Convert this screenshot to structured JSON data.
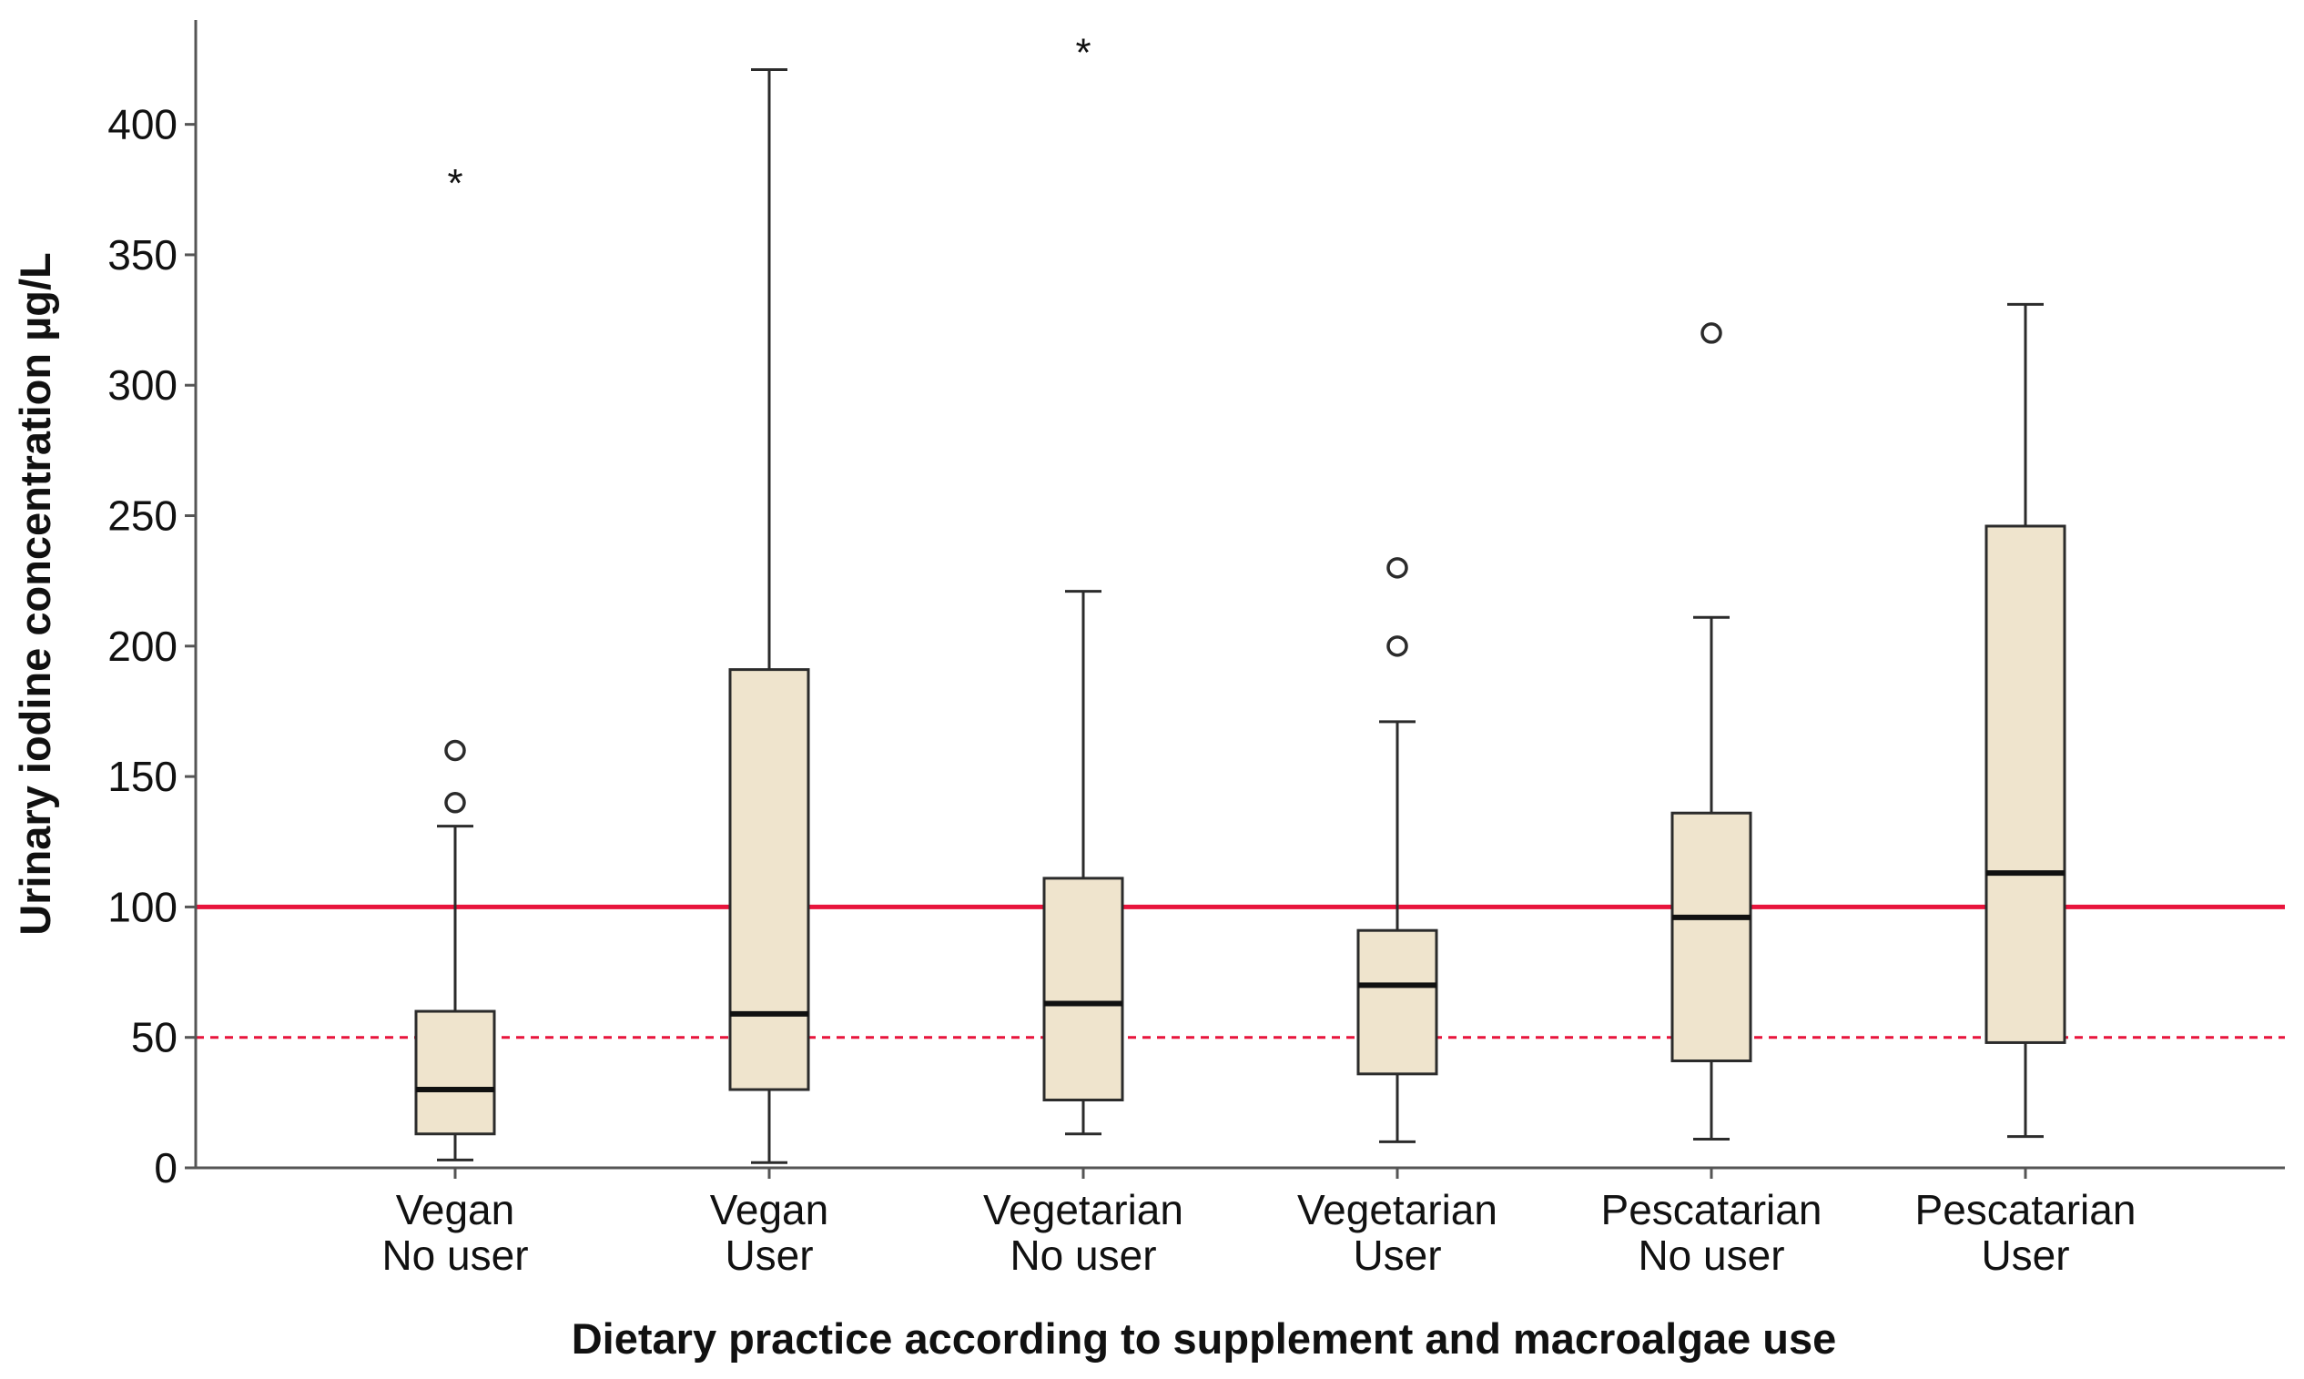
{
  "chart_data": {
    "type": "boxplot",
    "xlabel": "Dietary practice according to supplement and macroalgae use",
    "ylabel": "Urinary iodine concentration µg/L",
    "ylim": [
      0,
      440
    ],
    "yticks": [
      0,
      50,
      100,
      150,
      200,
      250,
      300,
      350,
      400
    ],
    "grid": false,
    "reference_lines": [
      {
        "value": 100,
        "style": "solid",
        "color": "#e8143c"
      },
      {
        "value": 50,
        "style": "dashed",
        "color": "#e8143c"
      }
    ],
    "categories": [
      {
        "label_line1": "Vegan",
        "label_line2": "No user",
        "whisker_low": 3,
        "q1": 13,
        "median": 30,
        "q3": 60,
        "whisker_high": 131,
        "outliers": [
          140,
          160
        ],
        "extremes": [
          380
        ]
      },
      {
        "label_line1": "Vegan",
        "label_line2": "User",
        "whisker_low": 2,
        "q1": 30,
        "median": 59,
        "q3": 191,
        "whisker_high": 421,
        "outliers": [],
        "extremes": []
      },
      {
        "label_line1": "Vegetarian",
        "label_line2": "No user",
        "whisker_low": 13,
        "q1": 26,
        "median": 63,
        "q3": 111,
        "whisker_high": 221,
        "outliers": [],
        "extremes": [
          430
        ]
      },
      {
        "label_line1": "Vegetarian",
        "label_line2": "User",
        "whisker_low": 10,
        "q1": 36,
        "median": 70,
        "q3": 91,
        "whisker_high": 171,
        "outliers": [
          200,
          230
        ],
        "extremes": []
      },
      {
        "label_line1": "Pescatarian",
        "label_line2": "No user",
        "whisker_low": 11,
        "q1": 41,
        "median": 96,
        "q3": 136,
        "whisker_high": 211,
        "outliers": [
          320
        ],
        "extremes": []
      },
      {
        "label_line1": "Pescatarian",
        "label_line2": "User",
        "whisker_low": 12,
        "q1": 48,
        "median": 113,
        "q3": 246,
        "whisker_high": 331,
        "outliers": [],
        "extremes": []
      }
    ],
    "colors": {
      "box_fill": "#efe4cd",
      "box_stroke": "#2b2b2b",
      "reference_line": "#e8143c"
    }
  }
}
